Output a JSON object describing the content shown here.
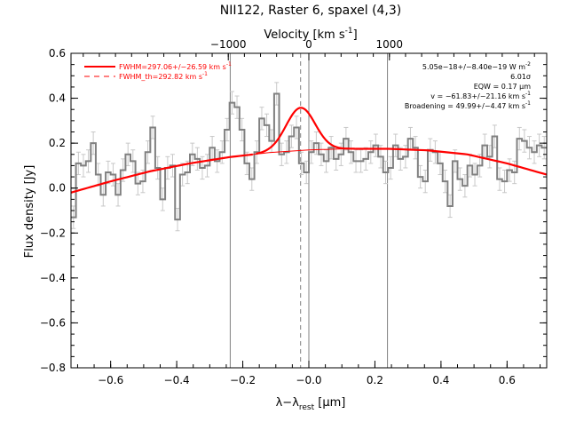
{
  "chart_data": {
    "type": "line",
    "title": "NII122, Raster 6, spaxel (4,3)",
    "xlabel": "λ−λ",
    "xlabel_sub": "rest",
    "xlabel_unit": " [μm]",
    "ylabel": "Flux density [Jy]",
    "x2label": "Velocity [km s",
    "x2label_sup": "-1",
    "x2label_end": "]",
    "xlim": [
      -0.72,
      0.72
    ],
    "ylim": [
      -0.8,
      0.6
    ],
    "xticks": [
      -0.6,
      -0.4,
      -0.2,
      0.0,
      0.2,
      0.4,
      0.6
    ],
    "xtick_labels": [
      "−0.6",
      "−0.4",
      "−0.2",
      "−0.0",
      "0.2",
      "0.4",
      "0.6"
    ],
    "yticks": [
      -0.8,
      -0.6,
      -0.4,
      -0.2,
      0.0,
      0.2,
      0.4,
      0.6
    ],
    "ytick_labels": [
      "−0.8",
      "−0.6",
      "−0.4",
      "−0.2",
      "0.0",
      "0.2",
      "0.4",
      "0.6"
    ],
    "x2ticks_velocity": [
      -1000,
      0,
      1000
    ],
    "x2tick_labels": [
      "−1000",
      "0",
      "1000"
    ],
    "velocity_per_micron": 4100,
    "vertical_lines": [
      {
        "x": -0.238,
        "style": "solid"
      },
      {
        "x": 0.0,
        "style": "solid"
      },
      {
        "x": 0.238,
        "style": "solid"
      },
      {
        "x": -0.025,
        "style": "dashed"
      }
    ],
    "legend": {
      "position": "top-left",
      "entries": [
        {
          "label": "FWHM=297.06+/−26.59 km s",
          "sup": "-1",
          "style": "solid"
        },
        {
          "label": "FWHM_th=292.82 km s",
          "sup": "-1",
          "style": "dashed"
        }
      ]
    },
    "annotations": [
      {
        "text": "5.05e−18+/−8.40e−19 W m",
        "sup": "-2"
      },
      {
        "text": "6.01σ",
        "sup": ""
      },
      {
        "text": "EQW = 0.17 μm",
        "sup": ""
      },
      {
        "text": "v = −61.83+/−21.16 km s",
        "sup": "-1"
      },
      {
        "text": "Broadening = 49.99+/−4.47 km s",
        "sup": "-1"
      }
    ],
    "series": [
      {
        "name": "data",
        "style": "histogram",
        "x": [
          -0.72,
          -0.705,
          -0.69,
          -0.675,
          -0.66,
          -0.645,
          -0.63,
          -0.615,
          -0.6,
          -0.585,
          -0.57,
          -0.555,
          -0.54,
          -0.525,
          -0.51,
          -0.495,
          -0.48,
          -0.465,
          -0.45,
          -0.435,
          -0.42,
          -0.405,
          -0.39,
          -0.375,
          -0.36,
          -0.345,
          -0.33,
          -0.315,
          -0.3,
          -0.285,
          -0.27,
          -0.255,
          -0.24,
          -0.225,
          -0.21,
          -0.195,
          -0.18,
          -0.165,
          -0.15,
          -0.135,
          -0.12,
          -0.105,
          -0.09,
          -0.075,
          -0.06,
          -0.045,
          -0.03,
          -0.015,
          0.0,
          0.015,
          0.03,
          0.045,
          0.06,
          0.075,
          0.09,
          0.105,
          0.12,
          0.135,
          0.15,
          0.165,
          0.18,
          0.195,
          0.21,
          0.225,
          0.24,
          0.255,
          0.27,
          0.285,
          0.3,
          0.315,
          0.33,
          0.345,
          0.36,
          0.375,
          0.39,
          0.405,
          0.42,
          0.435,
          0.45,
          0.465,
          0.48,
          0.495,
          0.51,
          0.525,
          0.54,
          0.555,
          0.57,
          0.585,
          0.6,
          0.615,
          0.63,
          0.645,
          0.66,
          0.675,
          0.69,
          0.705
        ],
        "values": [
          -0.13,
          0.11,
          0.1,
          0.12,
          0.2,
          0.06,
          -0.03,
          0.07,
          0.06,
          -0.03,
          0.08,
          0.15,
          0.12,
          0.02,
          0.03,
          0.16,
          0.27,
          0.09,
          -0.05,
          0.09,
          0.1,
          -0.14,
          0.06,
          0.07,
          0.15,
          0.13,
          0.09,
          0.1,
          0.18,
          0.12,
          0.16,
          0.26,
          0.38,
          0.36,
          0.26,
          0.11,
          0.04,
          0.16,
          0.31,
          0.28,
          0.21,
          0.42,
          0.15,
          0.16,
          0.23,
          0.27,
          0.11,
          0.07,
          0.16,
          0.2,
          0.15,
          0.12,
          0.18,
          0.13,
          0.15,
          0.22,
          0.16,
          0.12,
          0.12,
          0.13,
          0.16,
          0.19,
          0.14,
          0.07,
          0.09,
          0.19,
          0.13,
          0.14,
          0.22,
          0.18,
          0.05,
          0.03,
          0.17,
          0.16,
          0.11,
          0.03,
          -0.08,
          0.12,
          0.04,
          0.01,
          0.1,
          0.06,
          0.1,
          0.19,
          0.14,
          0.23,
          0.04,
          0.03,
          0.08,
          0.07,
          0.22,
          0.21,
          0.18,
          0.16,
          0.19,
          0.18
        ],
        "error": 0.05,
        "color": "#808080"
      },
      {
        "name": "continuum",
        "style": "line",
        "color": "#ff0000",
        "x": [
          -0.72,
          -0.6,
          -0.48,
          -0.36,
          -0.24,
          -0.12,
          0.0,
          0.12,
          0.24,
          0.36,
          0.48,
          0.6,
          0.72
        ],
        "values": [
          -0.02,
          0.03,
          0.075,
          0.11,
          0.138,
          0.158,
          0.17,
          0.175,
          0.175,
          0.168,
          0.15,
          0.11,
          0.06
        ]
      },
      {
        "name": "fit",
        "style": "line",
        "color": "#ff0000",
        "center": -0.025,
        "amplitude": 0.19,
        "sigma": 0.044,
        "x_range": [
          -0.16,
          0.14
        ]
      }
    ],
    "colors": {
      "data": "#808080",
      "fit": "#ff0000",
      "axis": "#000000",
      "lines": "#808080"
    }
  }
}
